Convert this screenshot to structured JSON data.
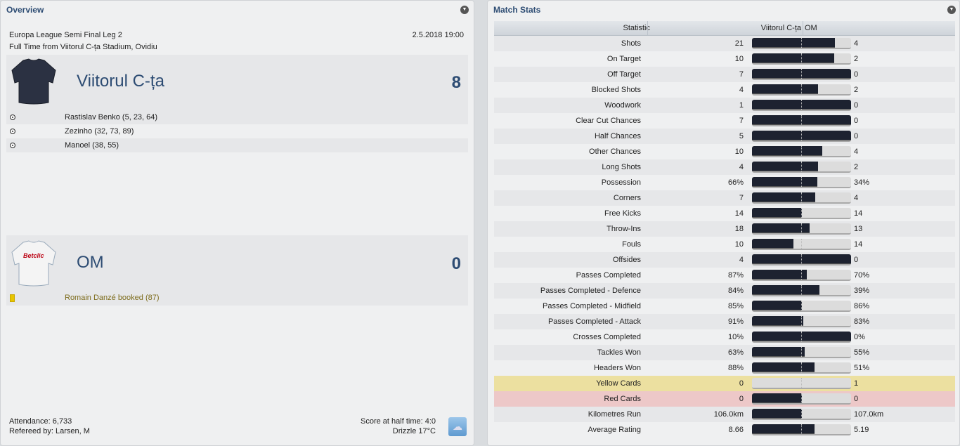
{
  "overview": {
    "title": "Overview",
    "competition": "Europa League Semi Final Leg 2",
    "datetime": "2.5.2018 19:00",
    "venue": "Full Time from Viitorul C-ța Stadium, Ovidiu",
    "home": {
      "name": "Viitorul C-ța",
      "score": "8",
      "events": [
        {
          "icon": "ball-icon",
          "text": "Rastislav Benko (5, 23, 64)"
        },
        {
          "icon": "ball-icon",
          "text": "Zezinho (32, 73, 89)"
        },
        {
          "icon": "ball-icon",
          "text": "Manoel (38, 55)"
        }
      ]
    },
    "away": {
      "name": "OM",
      "score": "0",
      "shirt_sponsor": "Betclic",
      "events": [
        {
          "icon": "yellow-card-icon",
          "text": "Romain Danzé booked (87)"
        }
      ]
    },
    "attendance": "Attendance: 6,733",
    "referee": "Refereed by: Larsen, M",
    "half_time": "Score at half time: 4:0",
    "weather": "Drizzle 17°C",
    "weather_icon": "rain-cloud-icon"
  },
  "match_stats": {
    "title": "Match Stats",
    "headers": {
      "statistic": "Statistic",
      "home": "Viitorul C-ța",
      "away": "OM"
    },
    "colors": {
      "bar_home": "#1d2230",
      "bar_away": "#dcdcdc",
      "yellow_row": "#ece0a0",
      "red_row": "#edc8c8"
    },
    "rows": [
      {
        "label": "Shots",
        "home": "21",
        "away": "4",
        "share": 0.84
      },
      {
        "label": "On Target",
        "home": "10",
        "away": "2",
        "share": 0.83
      },
      {
        "label": "Off Target",
        "home": "7",
        "away": "0",
        "share": 1
      },
      {
        "label": "Blocked Shots",
        "home": "4",
        "away": "2",
        "share": 0.67
      },
      {
        "label": "Woodwork",
        "home": "1",
        "away": "0",
        "share": 1
      },
      {
        "label": "Clear Cut Chances",
        "home": "7",
        "away": "0",
        "share": 1
      },
      {
        "label": "Half Chances",
        "home": "5",
        "away": "0",
        "share": 1
      },
      {
        "label": "Other Chances",
        "home": "10",
        "away": "4",
        "share": 0.71
      },
      {
        "label": "Long Shots",
        "home": "4",
        "away": "2",
        "share": 0.67
      },
      {
        "label": "Possession",
        "home": "66%",
        "away": "34%",
        "share": 0.66
      },
      {
        "label": "Corners",
        "home": "7",
        "away": "4",
        "share": 0.64
      },
      {
        "label": "Free Kicks",
        "home": "14",
        "away": "14",
        "share": 0.5
      },
      {
        "label": "Throw-Ins",
        "home": "18",
        "away": "13",
        "share": 0.58
      },
      {
        "label": "Fouls",
        "home": "10",
        "away": "14",
        "share": 0.42
      },
      {
        "label": "Offsides",
        "home": "4",
        "away": "0",
        "share": 1
      },
      {
        "label": "Passes Completed",
        "home": "87%",
        "away": "70%",
        "share": 0.55
      },
      {
        "label": "Passes Completed - Defence",
        "home": "84%",
        "away": "39%",
        "share": 0.68
      },
      {
        "label": "Passes Completed - Midfield",
        "home": "85%",
        "away": "86%",
        "share": 0.5
      },
      {
        "label": "Passes Completed - Attack",
        "home": "91%",
        "away": "83%",
        "share": 0.52
      },
      {
        "label": "Crosses Completed",
        "home": "10%",
        "away": "0%",
        "share": 1
      },
      {
        "label": "Tackles Won",
        "home": "63%",
        "away": "55%",
        "share": 0.53
      },
      {
        "label": "Headers Won",
        "home": "88%",
        "away": "51%",
        "share": 0.63
      },
      {
        "label": "Yellow Cards",
        "home": "0",
        "away": "1",
        "share": 0,
        "highlight": "yellow"
      },
      {
        "label": "Red Cards",
        "home": "0",
        "away": "0",
        "share": 0.5,
        "highlight": "red"
      },
      {
        "label": "Kilometres Run",
        "home": "106.0km",
        "away": "107.0km",
        "share": 0.5
      },
      {
        "label": "Average Rating",
        "home": "8.66",
        "away": "5.19",
        "share": 0.63
      }
    ]
  }
}
